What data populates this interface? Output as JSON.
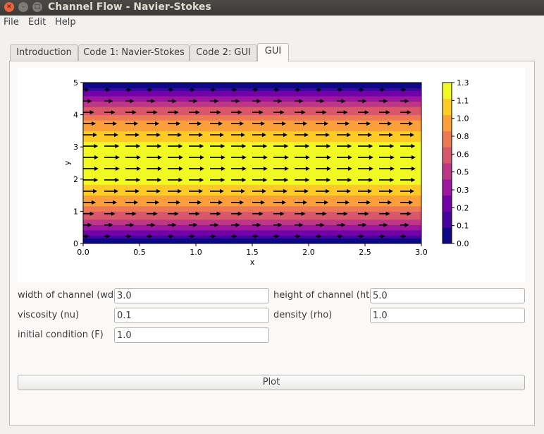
{
  "window": {
    "title": "Channel Flow - Navier-Stokes"
  },
  "menu": [
    "File",
    "Edit",
    "Help"
  ],
  "tabs": [
    {
      "label": "Introduction",
      "active": false
    },
    {
      "label": "Code 1: Navier-Stokes",
      "active": false
    },
    {
      "label": "Code 2: GUI",
      "active": false
    },
    {
      "label": "GUI",
      "active": true
    }
  ],
  "form": {
    "width_label": "width of channel (wd)",
    "width_value": "3.0",
    "height_label": "height of channel (ht)",
    "height_value": "5.0",
    "viscosity_label": "viscosity (nu)",
    "viscosity_value": "0.1",
    "density_label": "density (rho)",
    "density_value": "1.0",
    "initial_label": "initial condition (F)",
    "initial_value": "1.0",
    "plot_label": "Plot"
  },
  "chart_data": {
    "type": "heatmap",
    "description_kind": "filled contour with quiver arrows",
    "xlabel": "x",
    "ylabel": "y",
    "xlim": [
      0.0,
      3.0
    ],
    "ylim": [
      0,
      5
    ],
    "xticks": [
      "0.0",
      "0.5",
      "1.0",
      "1.5",
      "2.0",
      "2.5",
      "3.0"
    ],
    "yticks": [
      "0",
      "1",
      "2",
      "3",
      "4",
      "5"
    ],
    "colorbar_ticks": [
      "0.0",
      "0.1",
      "0.2",
      "0.3",
      "0.5",
      "0.6",
      "0.8",
      "1.0",
      "1.1",
      "1.3"
    ],
    "colorbar_range": [
      0.0,
      1.3
    ],
    "colormap": [
      "#0d0887",
      "#46039f",
      "#7201a8",
      "#9c179e",
      "#bd3786",
      "#d8576b",
      "#ed7953",
      "#fb9f3a",
      "#fdca26",
      "#f0f921"
    ],
    "profile": "parabolic u(y), max about 1.25 at y=2.5, zero at walls y=0 and y=5",
    "arrow_color": "#000000"
  }
}
